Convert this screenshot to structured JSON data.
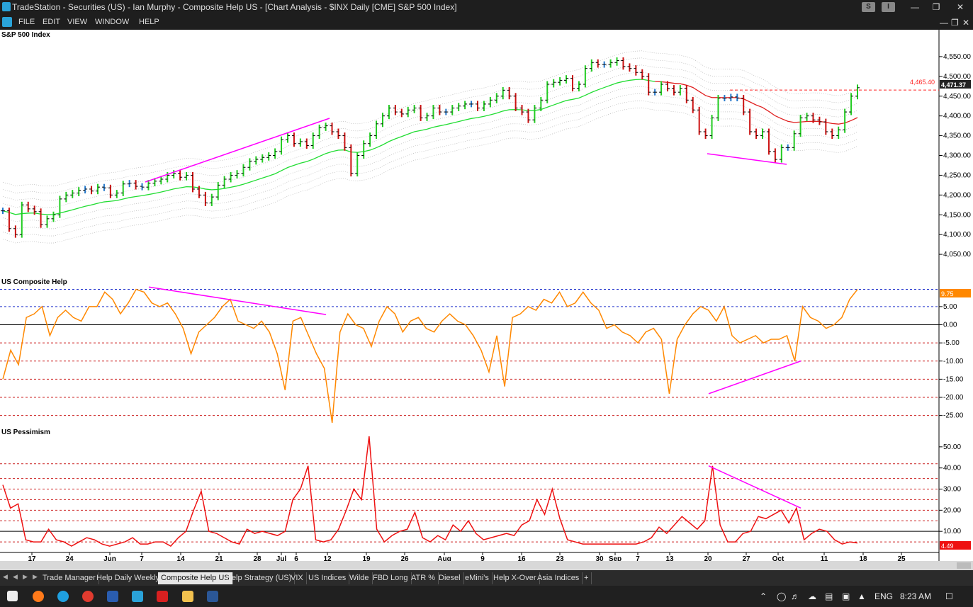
{
  "window": {
    "title": "TradeStation - Securities (US) - Ian Murphy - Composite Help US - [Chart Analysis - $INX Daily [CME] S&P 500 Index]",
    "badges": [
      "S",
      "I"
    ]
  },
  "menu": [
    "FILE",
    "EDIT",
    "VIEW",
    "WINDOW",
    "HELP"
  ],
  "colors": {
    "up": "#22cc22",
    "down": "#cc1111",
    "neutral": "#2277cc",
    "ema": "#22dd33",
    "composite": "#ff8800",
    "pessimism": "#ee1111",
    "trend": "#ff00ff",
    "price_line": "#ff2222"
  },
  "panels": [
    {
      "title": "S&P 500 Index",
      "ticks": [
        "4,550.00",
        "4,500.00",
        "4,450.00",
        "4,400.00",
        "4,350.00",
        "4,300.00",
        "4,250.00",
        "4,200.00",
        "4,150.00",
        "4,100.00",
        "4,050.00"
      ],
      "price_level": "4,465.40",
      "last_price": "4,471.37"
    },
    {
      "title": "US Composite Help",
      "ticks": [
        "5.00",
        "0.00",
        "-5.00",
        "-10.00",
        "-15.00",
        "-20.00",
        "-25.00"
      ],
      "last_value": "9.75"
    },
    {
      "title": "US Pessimism",
      "ticks": [
        "50.00",
        "40.00",
        "30.00",
        "20.00",
        "10.00"
      ],
      "last_value": "4.49"
    }
  ],
  "x_axis": {
    "labels": [
      "17",
      "24",
      "Jun",
      "7",
      "14",
      "21",
      "28",
      "Jul",
      "6",
      "12",
      "19",
      "26",
      "Aug",
      "9",
      "16",
      "23",
      "30",
      "Sep",
      "7",
      "13",
      "20",
      "27",
      "Oct",
      "11",
      "18",
      "25"
    ]
  },
  "chart_data": [
    {
      "type": "line",
      "title": "S&P 500 Index",
      "series": [
        {
          "values": [
            4160,
            4115,
            4100,
            4175,
            4165,
            4158,
            4125,
            4140,
            4150,
            4190,
            4200,
            4205,
            4212,
            4215,
            4210,
            4220,
            4218,
            4200,
            4205,
            4228,
            4230,
            4222,
            4220,
            4230,
            4235,
            4240,
            4250,
            4255,
            4245,
            4250,
            4215,
            4200,
            4180,
            4195,
            4225,
            4240,
            4250,
            4255,
            4270,
            4285,
            4290,
            4295,
            4300,
            4310,
            4340,
            4350,
            4330,
            4335,
            4325,
            4350,
            4370,
            4375,
            4360,
            4350,
            4320,
            4255,
            4300,
            4330,
            4350,
            4380,
            4400,
            4420,
            4410,
            4405,
            4415,
            4420,
            4395,
            4400,
            4420,
            4410,
            4410,
            4420,
            4425,
            4430,
            4430,
            4420,
            4430,
            4440,
            4450,
            4465,
            4450,
            4420,
            4410,
            4390,
            4420,
            4440,
            4480,
            4485,
            4490,
            4495,
            4470,
            4480,
            4520,
            4535,
            4530,
            4530,
            4535,
            4540,
            4525,
            4520,
            4510,
            4500,
            4460,
            4460,
            4480,
            4470,
            4460,
            4470,
            4440,
            4415,
            4360,
            4350,
            4395,
            4445,
            4445,
            4448,
            4445,
            4410,
            4360,
            4350,
            4360,
            4310,
            4290,
            4320,
            4320,
            4355,
            4395,
            4400,
            4390,
            4385,
            4360,
            4350,
            4365,
            4410,
            4450,
            4471.37
          ]
        }
      ],
      "price_level": 4465.4,
      "ylim": [
        4000,
        4600
      ]
    },
    {
      "type": "line",
      "title": "US Composite Help",
      "series": [
        {
          "values": [
            -15,
            -7,
            -11,
            2,
            3,
            5,
            -3,
            2,
            4,
            2,
            1,
            5,
            5,
            9,
            7,
            3,
            6,
            9.75,
            9,
            6,
            5,
            6,
            3,
            -1,
            -8,
            -2,
            0,
            2,
            5,
            7,
            1,
            0,
            -1,
            1,
            -2,
            -8,
            -18,
            1,
            2,
            -3,
            -8,
            -12,
            -27,
            -2,
            3,
            0,
            -1,
            -6,
            1,
            5,
            3,
            -2,
            1,
            2,
            -1,
            -2,
            1,
            3,
            1,
            0,
            -3,
            -7,
            -13,
            -3,
            -17,
            2,
            3,
            5,
            4,
            7,
            6,
            9,
            5,
            6,
            9,
            6,
            4,
            -1,
            0,
            -2,
            -3,
            -5,
            -2,
            -1,
            -4,
            -19,
            -4,
            0,
            3,
            5,
            4,
            1,
            5,
            -3,
            -5,
            -4,
            -3,
            -5,
            -4,
            -4,
            -3,
            -10,
            5,
            2,
            1,
            -1,
            0,
            2,
            7,
            9.75
          ]
        }
      ],
      "ylim": [
        -28,
        12
      ]
    },
    {
      "type": "line",
      "title": "US Pessimism",
      "series": [
        {
          "values": [
            32,
            21,
            23,
            6,
            5,
            5,
            11,
            6,
            5,
            3,
            5,
            7,
            6,
            4,
            3,
            4,
            5,
            7,
            4,
            4,
            5,
            5,
            3,
            7,
            10,
            20,
            29,
            10,
            9,
            7,
            5,
            4,
            11,
            9,
            10,
            9,
            8,
            10,
            25,
            30,
            41,
            6,
            5,
            6,
            11,
            20,
            30,
            25,
            55,
            11,
            5,
            8,
            10,
            11,
            19,
            7,
            5,
            8,
            6,
            13,
            10,
            15,
            9,
            6,
            7,
            8,
            9,
            8,
            13,
            15,
            25,
            18,
            30,
            16,
            6,
            5,
            4,
            4,
            4,
            4,
            4,
            4,
            4,
            4,
            5,
            7,
            12,
            9,
            13,
            17,
            14,
            11,
            15,
            41,
            13,
            5,
            5,
            9,
            10,
            17,
            16,
            18,
            20,
            14,
            21,
            6,
            9,
            11,
            10,
            6,
            4,
            5,
            4.49
          ]
        }
      ],
      "ylim": [
        0,
        58
      ]
    }
  ]
}
